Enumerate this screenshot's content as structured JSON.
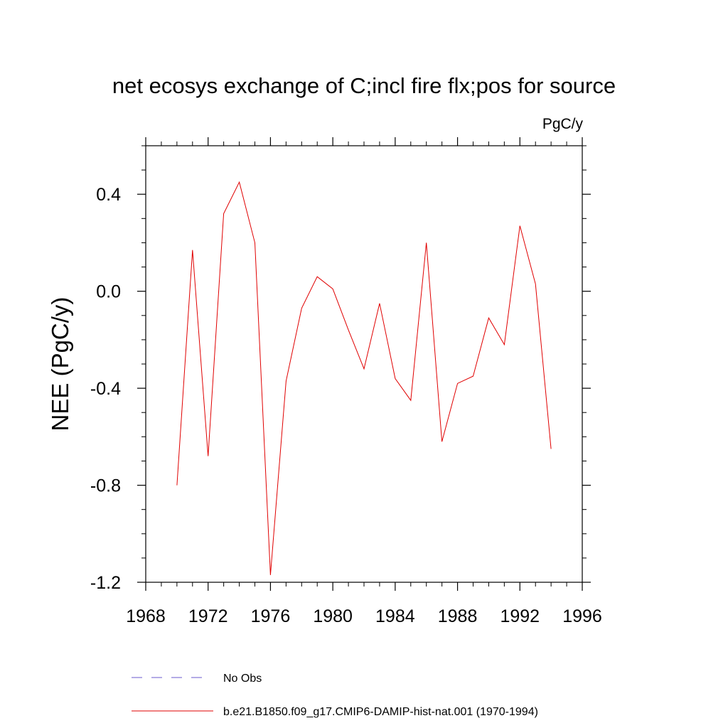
{
  "chart_data": {
    "type": "line",
    "title": "net ecosys exchange of C;incl fire flx;pos for source",
    "units_label": "PgC/y",
    "ylabel": "NEE  (PgC/y)",
    "xlabel": "",
    "xlim": [
      1968,
      1996
    ],
    "ylim": [
      -1.2,
      0.6
    ],
    "x_ticks": [
      1968,
      1972,
      1976,
      1980,
      1984,
      1988,
      1992,
      1996
    ],
    "x_tick_labels": [
      "1968",
      "1972",
      "1976",
      "1980",
      "1984",
      "1988",
      "1992",
      "1996"
    ],
    "y_ticks": [
      -1.2,
      -0.8,
      -0.4,
      0.0,
      0.4
    ],
    "y_tick_labels": [
      "-1.2",
      "-0.8",
      "-0.4",
      "0.0",
      "0.4"
    ],
    "grid": false,
    "legend_position": "bottom",
    "series": [
      {
        "name": "No Obs",
        "color": "#6a5acd",
        "style": "dashed",
        "x": [],
        "y": []
      },
      {
        "name": "b.e21.B1850.f09_g17.CMIP6-DAMIP-hist-nat.001 (1970-1994)",
        "color": "#e00000",
        "style": "solid",
        "x": [
          1970,
          1971,
          1972,
          1973,
          1974,
          1975,
          1976,
          1977,
          1978,
          1979,
          1980,
          1981,
          1982,
          1983,
          1984,
          1985,
          1986,
          1987,
          1988,
          1989,
          1990,
          1991,
          1992,
          1993,
          1994
        ],
        "y": [
          -0.8,
          0.17,
          -0.68,
          0.32,
          0.45,
          0.2,
          -1.17,
          -0.37,
          -0.07,
          0.06,
          0.01,
          -0.16,
          -0.32,
          -0.05,
          -0.36,
          -0.45,
          0.2,
          -0.62,
          -0.38,
          -0.35,
          -0.11,
          -0.22,
          0.27,
          0.03,
          -0.65
        ]
      }
    ]
  }
}
